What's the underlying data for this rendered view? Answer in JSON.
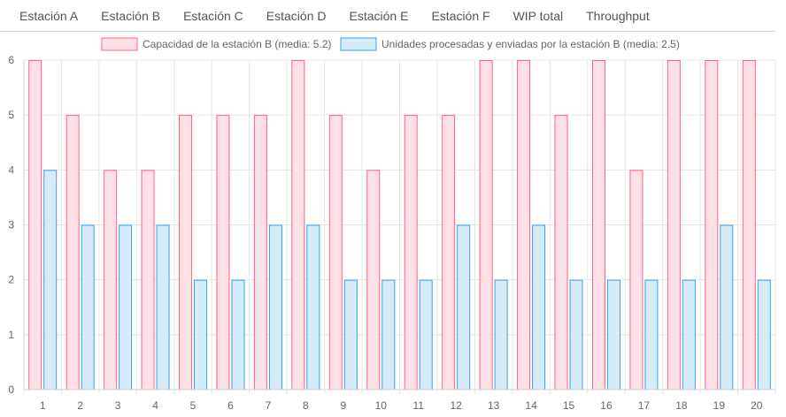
{
  "tabs": [
    {
      "label": "Estación A"
    },
    {
      "label": "Estación B"
    },
    {
      "label": "Estación C"
    },
    {
      "label": "Estación D"
    },
    {
      "label": "Estación E"
    },
    {
      "label": "Estación F"
    },
    {
      "label": "WIP total"
    },
    {
      "label": "Throughput"
    }
  ],
  "colors": {
    "capacity_fill": "#ffe0e6",
    "capacity_stroke": "#ff6384",
    "processed_fill": "#d7ecfb",
    "processed_stroke": "#36a2eb",
    "grid": "#e5e5e5"
  },
  "chart_data": {
    "type": "bar",
    "categories": [
      "1",
      "2",
      "3",
      "4",
      "5",
      "6",
      "7",
      "8",
      "9",
      "10",
      "11",
      "12",
      "13",
      "14",
      "15",
      "16",
      "17",
      "18",
      "19",
      "20"
    ],
    "series": [
      {
        "name": "Capacidad de la estación B (media: 5.2)",
        "values": [
          6,
          5,
          4,
          4,
          5,
          5,
          5,
          6,
          5,
          4,
          5,
          5,
          6,
          6,
          5,
          6,
          4,
          6,
          6,
          6
        ]
      },
      {
        "name": "Unidades procesadas y enviadas por la estación B (media: 2.5)",
        "values": [
          4,
          3,
          3,
          3,
          2,
          2,
          3,
          3,
          2,
          2,
          2,
          3,
          2,
          3,
          2,
          2,
          2,
          2,
          3,
          2
        ]
      }
    ],
    "ylim": [
      0,
      6
    ],
    "yticks": [
      0,
      1,
      2,
      3,
      4,
      5,
      6
    ],
    "grid": true,
    "legend": "top-center"
  }
}
